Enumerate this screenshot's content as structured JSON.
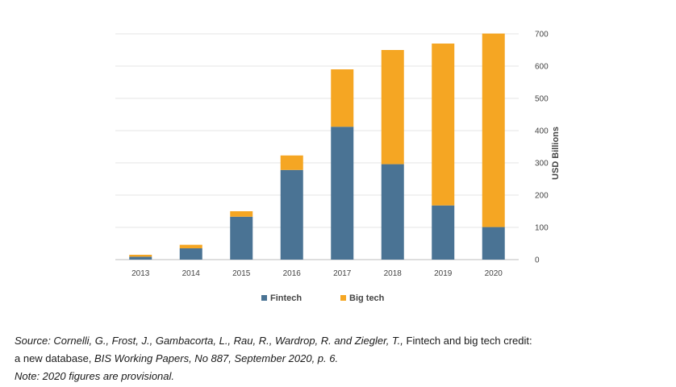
{
  "chart_data": {
    "type": "bar",
    "stacked": true,
    "categories": [
      "2013",
      "2014",
      "2015",
      "2016",
      "2017",
      "2018",
      "2019",
      "2020"
    ],
    "series": [
      {
        "name": "Fintech",
        "color": "#4a7394",
        "values": [
          9,
          35,
          133,
          278,
          412,
          296,
          168,
          101
        ]
      },
      {
        "name": "Big tech",
        "color": "#f5a623",
        "values": [
          6,
          11,
          17,
          45,
          178,
          354,
          502,
          600
        ]
      }
    ],
    "ylabel": "USD Billions",
    "ylim": [
      0,
      700
    ],
    "yticks": [
      0,
      100,
      200,
      300,
      400,
      500,
      600,
      700
    ],
    "y_axis_side": "right",
    "grid": true,
    "legend": "bottom"
  },
  "caption": {
    "source_a": "Source: Cornelli, G., Frost, J., Gambacorta, L., Rau, R., Wardrop, R. and Ziegler, T., ",
    "source_b": "Fintech and big tech credit:",
    "source_c": "a new database, ",
    "source_d": "BIS Working Papers, No 887, September 2020, p. 6.",
    "note": "Note: 2020 figures are provisional."
  }
}
